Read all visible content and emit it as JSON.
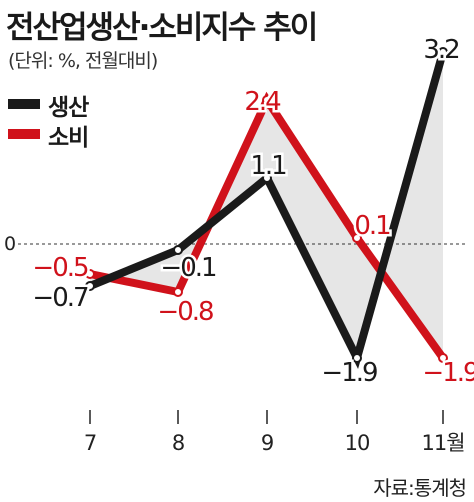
{
  "header": {
    "title": "전산업생산·소비지수 추이",
    "subtitle": "(단위: %, 전월대비)"
  },
  "legend": [
    {
      "label": "생산",
      "color": "#1a1a1a"
    },
    {
      "label": "소비",
      "color": "#d0121b"
    }
  ],
  "footer": {
    "source": "자료:통계청"
  },
  "chart_data": {
    "type": "line",
    "categories": [
      "7",
      "8",
      "9",
      "10",
      "11월"
    ],
    "series": [
      {
        "name": "생산",
        "values": [
          -0.7,
          -0.1,
          1.1,
          -1.9,
          3.2
        ],
        "labels": [
          "−0.7",
          "−0.1",
          "1.1",
          "−1.9",
          "3.2"
        ],
        "color": "#1a1a1a"
      },
      {
        "name": "소비",
        "values": [
          -0.5,
          -0.8,
          2.4,
          0.1,
          -1.9
        ],
        "labels": [
          "−0.5",
          "−0.8",
          "2.4",
          "0.1",
          "−1.9"
        ],
        "color": "#d0121b"
      }
    ],
    "zero_label": "0",
    "shaded_area_between_series": true,
    "ylim": [
      -3.2,
      3.8
    ],
    "grid": false,
    "legend_position": "top-left"
  }
}
